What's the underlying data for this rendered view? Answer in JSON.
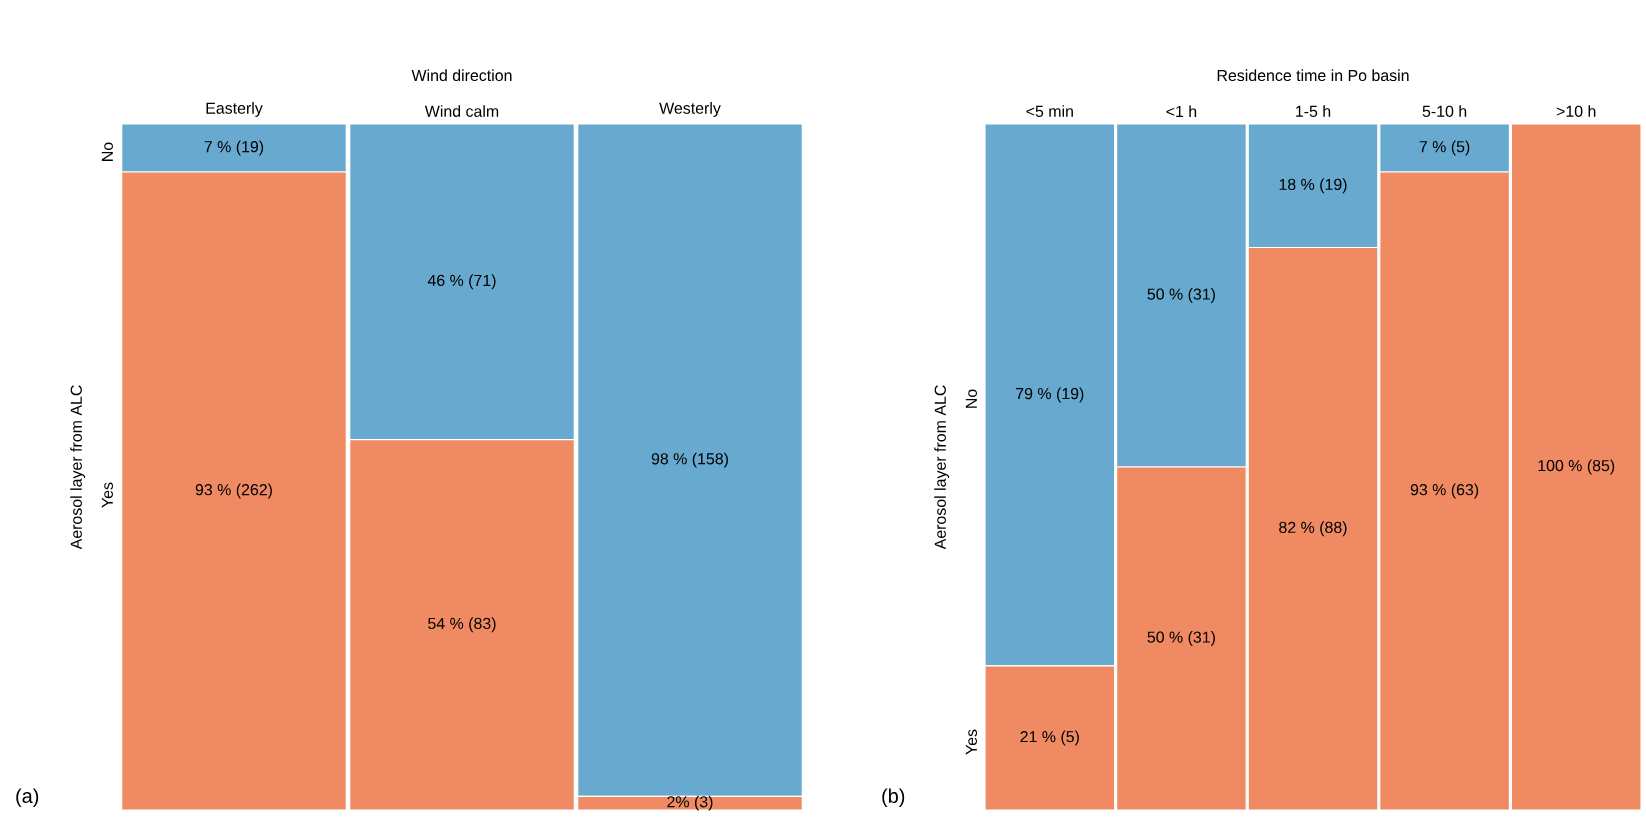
{
  "chart_data": [
    {
      "type": "bar",
      "stacked": true,
      "title": "Wind direction",
      "ylabel": "Aerosol layer from ALC",
      "categories": [
        "Easterly",
        "Wind calm",
        "Westerly"
      ],
      "ylim": [
        0,
        100
      ],
      "tick_labels": "x",
      "annotations": [
        "(a)"
      ],
      "series": [
        {
          "name": "Yes",
          "color": "#ef8a62",
          "values": [
            93,
            54,
            2
          ],
          "value_labels": [
            "93 % (262)",
            "54 % (83)",
            "2% (3)"
          ]
        },
        {
          "name": "No",
          "color": "#67a9cf",
          "values": [
            7,
            46,
            98
          ],
          "value_labels": [
            "7 % (19)",
            "46 % (71)",
            "98 % (158)"
          ]
        }
      ]
    },
    {
      "type": "bar",
      "stacked": true,
      "title": "Residence time in Po basin",
      "ylabel": "Aerosol layer from ALC",
      "categories": [
        "<5 min",
        "<1 h",
        "1-5 h",
        "5-10 h",
        ">10 h"
      ],
      "ylim": [
        0,
        100
      ],
      "tick_labels": "x",
      "annotations": [
        "(b)"
      ],
      "series": [
        {
          "name": "Yes",
          "color": "#ef8a62",
          "values": [
            21,
            50,
            82,
            93,
            100
          ],
          "value_labels": [
            "21 % (5)",
            "50 % (31)",
            "82 % (88)",
            "93 % (63)",
            "100 % (85)"
          ]
        },
        {
          "name": "No",
          "color": "#67a9cf",
          "values": [
            79,
            50,
            18,
            7,
            0
          ],
          "value_labels": [
            "79 % (19)",
            "50 % (31)",
            "18 % (19)",
            "7 % (5)",
            null
          ]
        }
      ]
    }
  ]
}
